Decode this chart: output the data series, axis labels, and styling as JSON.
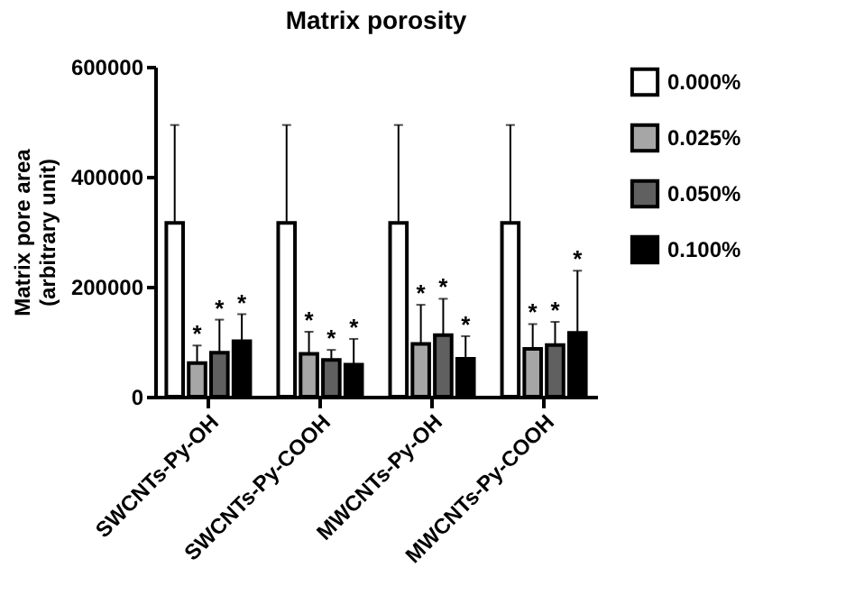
{
  "chart_data": {
    "type": "bar",
    "title": "Matrix porosity",
    "ylabel": "Matrix pore area\n(arbitrary unit)",
    "categories": [
      "SWCNTs-Py-OH",
      "SWCNTs-Py-COOH",
      "MWCNTs-Py-OH",
      "MWCNTs-Py-COOH"
    ],
    "series": [
      {
        "name": "0.000%",
        "color": "#ffffff",
        "values": [
          316000,
          316000,
          316000,
          316000
        ],
        "errors": [
          [
            316000,
            494000
          ],
          [
            316000,
            494000
          ],
          [
            316000,
            494000
          ],
          [
            316000,
            494000
          ]
        ]
      },
      {
        "name": "0.025%",
        "color": "#a6a6a6",
        "values": [
          61000,
          78000,
          96000,
          87000
        ],
        "errors": [
          [
            61000,
            93000
          ],
          [
            78000,
            118000
          ],
          [
            96000,
            167000
          ],
          [
            87000,
            132000
          ]
        ]
      },
      {
        "name": "0.050%",
        "color": "#606060",
        "values": [
          80000,
          67000,
          112000,
          94000
        ],
        "errors": [
          [
            80000,
            140000
          ],
          [
            67000,
            85000
          ],
          [
            112000,
            178000
          ],
          [
            94000,
            136000
          ]
        ]
      },
      {
        "name": "0.100%",
        "color": "#000000",
        "values": [
          101000,
          58000,
          69000,
          116000
        ],
        "errors": [
          [
            101000,
            150000
          ],
          [
            58000,
            105000
          ],
          [
            69000,
            110000
          ],
          [
            116000,
            229000
          ]
        ]
      }
    ],
    "annotations": [
      "*",
      "*",
      "*",
      "*",
      "*",
      "*",
      "*",
      "*",
      "*",
      "*",
      "*",
      "*"
    ],
    "ylim": [
      0,
      600000
    ],
    "yticks": [
      0,
      200000,
      400000,
      600000
    ],
    "grid": false,
    "legend": "right"
  }
}
